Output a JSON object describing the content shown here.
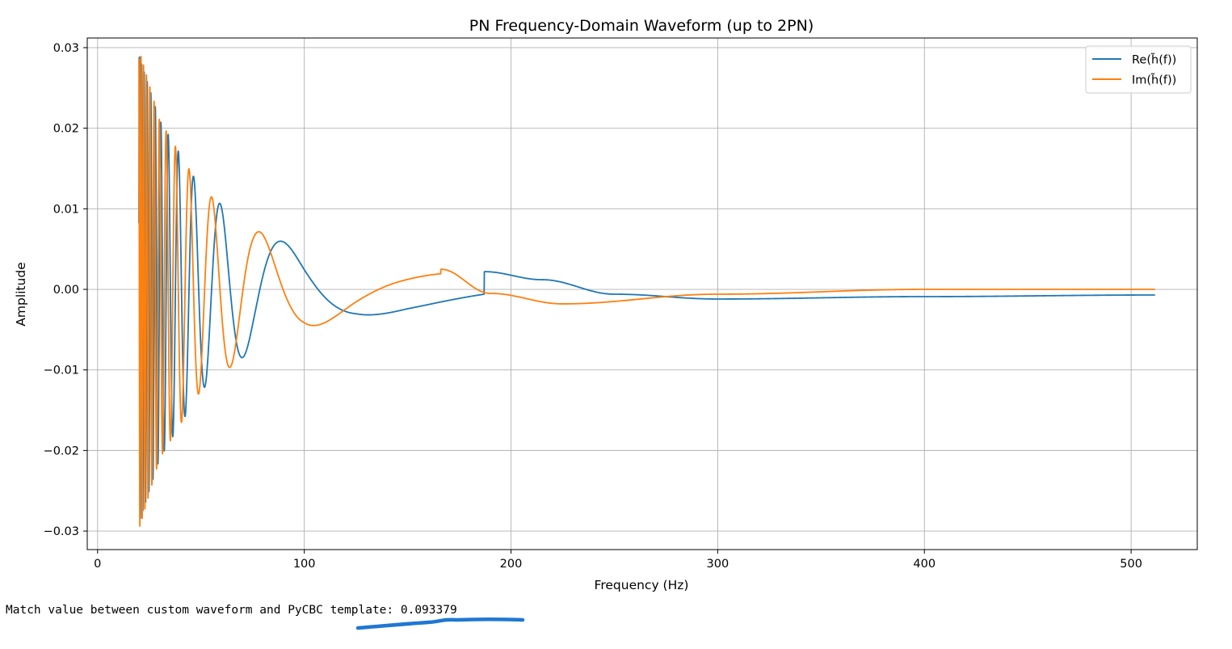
{
  "chart_data": {
    "type": "line",
    "title": "PN Frequency-Domain Waveform (up to 2PN)",
    "xlabel": "Frequency (Hz)",
    "ylabel": "Amplitude",
    "xlim": [
      -5,
      532
    ],
    "ylim": [
      -0.0323,
      0.0312
    ],
    "xticks": [
      0,
      100,
      200,
      300,
      400,
      500
    ],
    "xtick_labels": [
      "0",
      "100",
      "200",
      "300",
      "400",
      "500"
    ],
    "yticks": [
      -0.03,
      -0.02,
      -0.01,
      0.0,
      0.01,
      0.02,
      0.03
    ],
    "ytick_labels": [
      "−0.03",
      "−0.02",
      "−0.01",
      "0.00",
      "0.01",
      "0.02",
      "0.03"
    ],
    "grid": true,
    "legend_position": "upper right",
    "series": [
      {
        "name": "Re(h̃(f))",
        "color": "#1f77b4",
        "f_range": [
          20,
          512
        ],
        "envelope": [
          [
            20,
            0.029
          ],
          [
            30,
            0.021
          ],
          [
            50,
            0.0125
          ],
          [
            75,
            0.0075
          ],
          [
            100,
            0.0048
          ],
          [
            125,
            0.0034
          ],
          [
            150,
            0.0027
          ],
          [
            187,
            0.0022
          ]
        ],
        "tail": [
          [
            187,
            0.0022
          ],
          [
            215,
            0.0012
          ],
          [
            250,
            -0.0006
          ],
          [
            300,
            -0.0012
          ],
          [
            400,
            -0.0009
          ],
          [
            512,
            -0.0007
          ]
        ]
      },
      {
        "name": "Im(h̃(f))",
        "color": "#ff7f0e",
        "f_range": [
          20,
          512
        ],
        "envelope": [
          [
            20,
            0.0298
          ],
          [
            30,
            0.021
          ],
          [
            50,
            0.0125
          ],
          [
            75,
            0.0075
          ],
          [
            100,
            0.0048
          ],
          [
            125,
            0.0034
          ],
          [
            150,
            0.0027
          ],
          [
            166,
            0.0025
          ]
        ],
        "tail": [
          [
            166,
            0.0025
          ],
          [
            190,
            -0.0005
          ],
          [
            225,
            -0.0018
          ],
          [
            300,
            -0.0006
          ],
          [
            400,
            0.0
          ],
          [
            512,
            0.0
          ]
        ]
      }
    ]
  },
  "console": {
    "output": "Match value between custom waveform and PyCBC template: 0.093379"
  }
}
